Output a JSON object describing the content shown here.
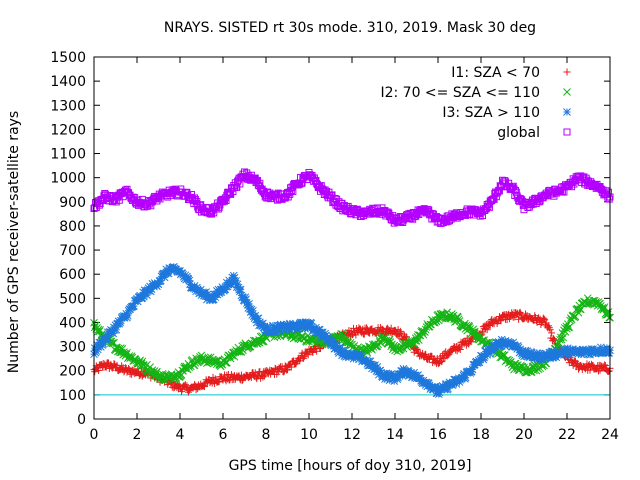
{
  "chart_data": {
    "type": "scatter",
    "title": "NRAYS. SISTED rt 30s mode. 310, 2019. Mask 30 deg",
    "xlabel": "GPS time [hours of doy 310, 2019]",
    "ylabel": "Number of GPS receiver-satellite rays",
    "xlim": [
      0,
      24
    ],
    "ylim": [
      0,
      1500
    ],
    "xticks": [
      0,
      2,
      4,
      6,
      8,
      10,
      12,
      14,
      16,
      18,
      20,
      22,
      24
    ],
    "yticks": [
      0,
      100,
      200,
      300,
      400,
      500,
      600,
      700,
      800,
      900,
      1000,
      1100,
      1200,
      1300,
      1400,
      1500
    ],
    "grid": false,
    "legend_position": "top-right",
    "reference_line": {
      "y": 100,
      "color": "#00c8c8"
    },
    "series": [
      {
        "name": "I1: SZA < 70",
        "marker": "plus",
        "color": "#e51c1c",
        "x": [
          0,
          0.5,
          1,
          1.5,
          2,
          2.5,
          3,
          3.5,
          4,
          4.5,
          5,
          5.5,
          6,
          6.5,
          7,
          7.5,
          8,
          8.5,
          9,
          9.5,
          10,
          10.5,
          11,
          11.5,
          12,
          12.5,
          13,
          13.5,
          14,
          14.5,
          15,
          15.5,
          16,
          16.5,
          17,
          17.5,
          18,
          18.5,
          19,
          19.5,
          20,
          20.5,
          21,
          21.5,
          22,
          22.5,
          23,
          23.5,
          24
        ],
        "values": [
          200,
          225,
          215,
          200,
          195,
          190,
          170,
          150,
          130,
          125,
          140,
          160,
          170,
          170,
          175,
          180,
          185,
          200,
          210,
          250,
          280,
          300,
          320,
          340,
          360,
          365,
          370,
          365,
          370,
          330,
          280,
          250,
          240,
          275,
          300,
          330,
          360,
          400,
          420,
          430,
          425,
          415,
          400,
          300,
          250,
          220,
          215,
          210,
          210
        ]
      },
      {
        "name": "I2: 70 <= SZA <= 110",
        "marker": "cross",
        "color": "#14b414",
        "x": [
          0,
          0.5,
          1,
          1.5,
          2,
          2.5,
          3,
          3.5,
          4,
          4.5,
          5,
          5.5,
          6,
          6.5,
          7,
          7.5,
          8,
          8.5,
          9,
          9.5,
          10,
          10.5,
          11,
          11.5,
          12,
          12.5,
          13,
          13.5,
          14,
          14.5,
          15,
          15.5,
          16,
          16.5,
          17,
          17.5,
          18,
          18.5,
          19,
          19.5,
          20,
          20.5,
          21,
          21.5,
          22,
          22.5,
          23,
          23.5,
          24
        ],
        "values": [
          390,
          330,
          300,
          270,
          240,
          210,
          180,
          170,
          190,
          230,
          250,
          240,
          230,
          270,
          300,
          320,
          340,
          355,
          350,
          345,
          330,
          320,
          330,
          340,
          300,
          275,
          300,
          340,
          290,
          300,
          330,
          380,
          420,
          430,
          405,
          370,
          330,
          300,
          260,
          220,
          205,
          210,
          240,
          300,
          380,
          450,
          490,
          480,
          420
        ]
      },
      {
        "name": "I3: SZA > 110",
        "marker": "star",
        "color": "#1e78dc",
        "x": [
          0,
          0.5,
          1,
          1.5,
          2,
          2.5,
          3,
          3.5,
          4,
          4.5,
          5,
          5.5,
          6,
          6.5,
          7,
          7.5,
          8,
          8.5,
          9,
          9.5,
          10,
          10.5,
          11,
          11.5,
          12,
          12.5,
          13,
          13.5,
          14,
          14.5,
          15,
          15.5,
          16,
          16.5,
          17,
          17.5,
          18,
          18.5,
          19,
          19.5,
          20,
          20.5,
          21,
          21.5,
          22,
          22.5,
          23,
          23.5,
          24
        ],
        "values": [
          280,
          330,
          380,
          430,
          490,
          530,
          570,
          620,
          610,
          560,
          520,
          500,
          540,
          580,
          500,
          420,
          370,
          375,
          380,
          385,
          390,
          360,
          320,
          280,
          260,
          250,
          215,
          180,
          170,
          200,
          175,
          150,
          110,
          140,
          160,
          200,
          250,
          290,
          320,
          310,
          270,
          260,
          260,
          270,
          280,
          275,
          280,
          285,
          285
        ]
      },
      {
        "name": "global",
        "marker": "square",
        "color": "#b400ff",
        "x": [
          0,
          0.5,
          1,
          1.5,
          2,
          2.5,
          3,
          3.5,
          4,
          4.5,
          5,
          5.5,
          6,
          6.5,
          7,
          7.5,
          8,
          8.5,
          9,
          9.5,
          10,
          10.5,
          11,
          11.5,
          12,
          12.5,
          13,
          13.5,
          14,
          14.5,
          15,
          15.5,
          16,
          16.5,
          17,
          17.5,
          18,
          18.5,
          19,
          19.5,
          20,
          20.5,
          21,
          21.5,
          22,
          22.5,
          23,
          23.5,
          24
        ],
        "values": [
          880,
          920,
          910,
          940,
          900,
          890,
          920,
          935,
          940,
          920,
          870,
          860,
          900,
          960,
          1010,
          990,
          930,
          920,
          930,
          980,
          1010,
          960,
          920,
          880,
          860,
          850,
          860,
          860,
          820,
          830,
          850,
          860,
          820,
          830,
          850,
          860,
          850,
          900,
          980,
          950,
          880,
          900,
          930,
          940,
          960,
          1000,
          980,
          960,
          920
        ]
      }
    ]
  }
}
